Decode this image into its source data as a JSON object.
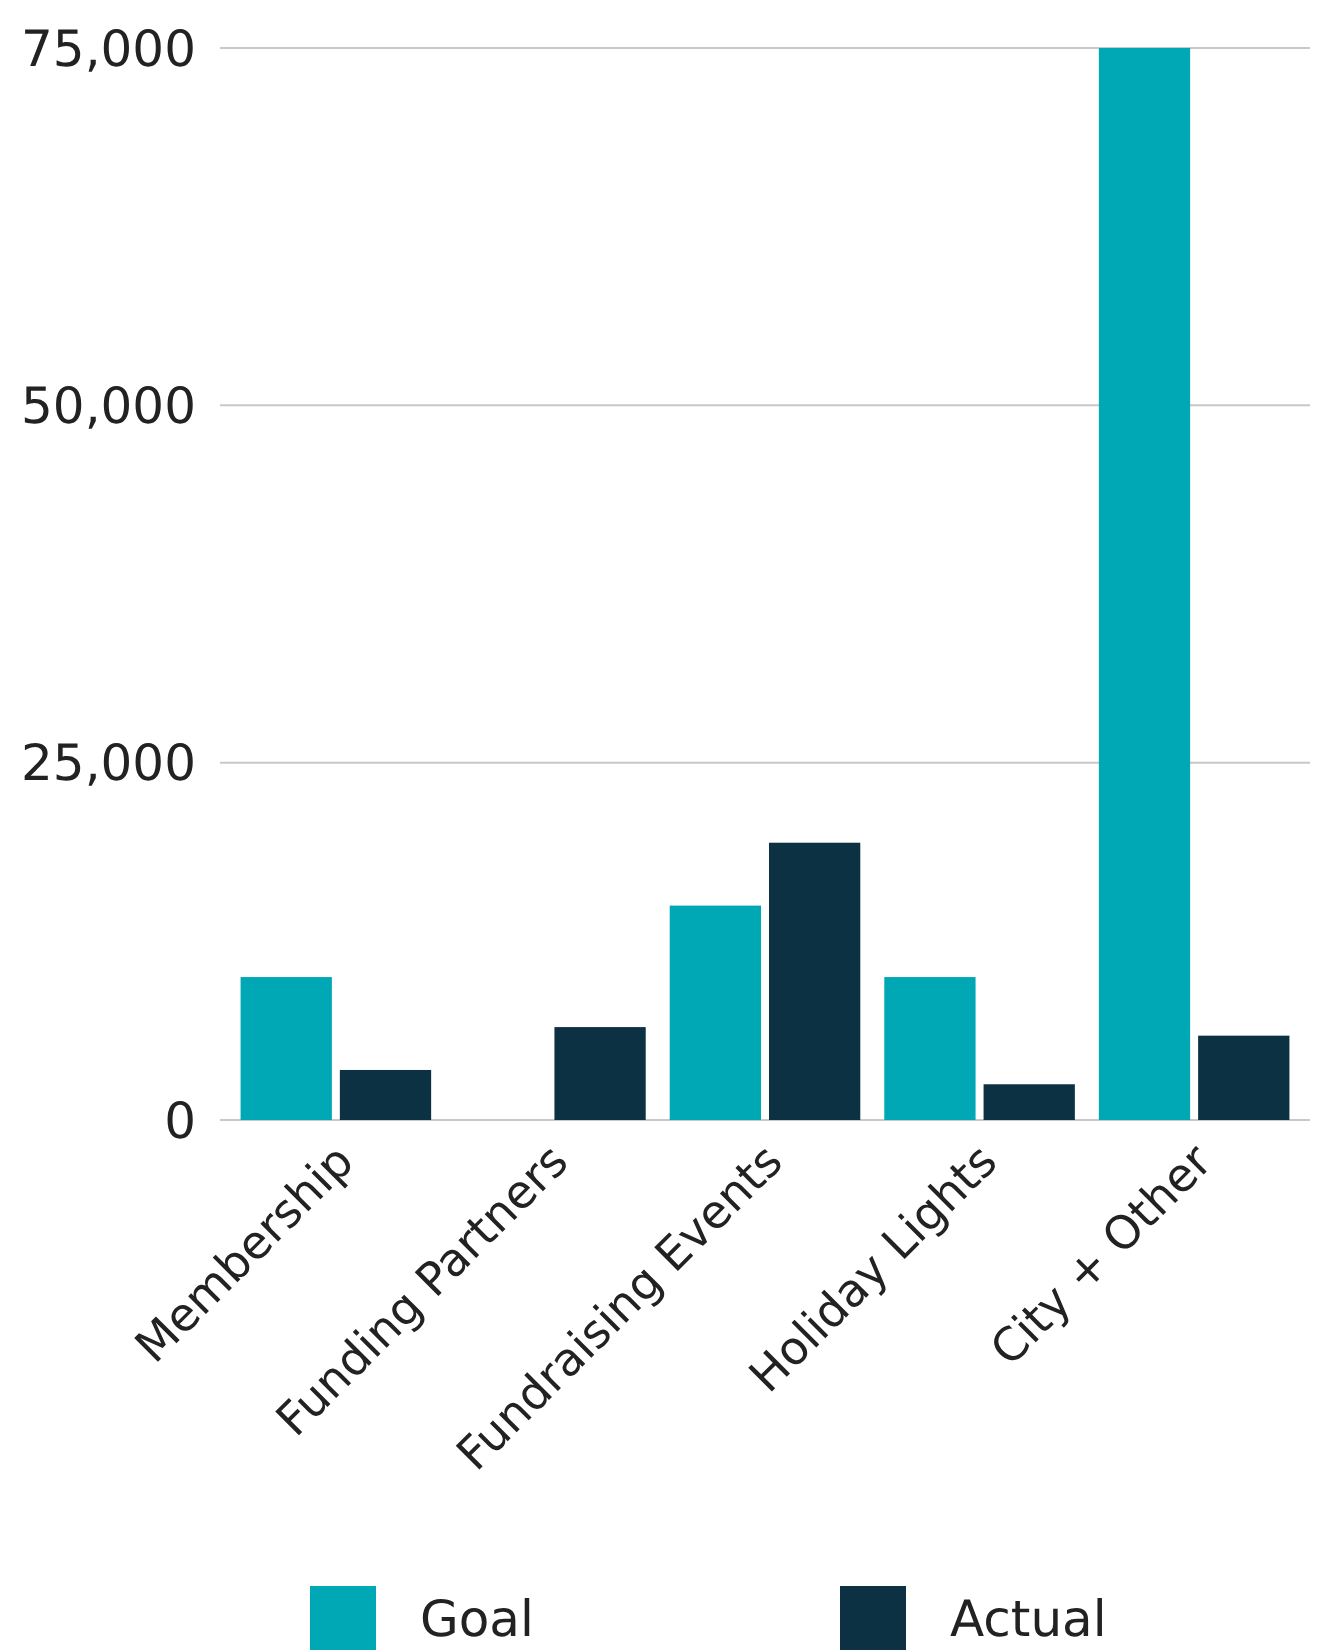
{
  "chart_data": {
    "type": "bar",
    "categories": [
      "Membership",
      "Funding Partners",
      "Fundraising Events",
      "Holiday Lights",
      "City + Other"
    ],
    "series": [
      {
        "name": "Goal",
        "color": "#00a8b5",
        "values": [
          10000,
          0,
          15000,
          10000,
          75000
        ]
      },
      {
        "name": "Actual",
        "color": "#0b3142",
        "values": [
          3500,
          6500,
          19400,
          2500,
          5900
        ]
      }
    ],
    "ylim": [
      0,
      75000
    ],
    "yticks": [
      {
        "value": 0,
        "label": "0"
      },
      {
        "value": 25000,
        "label": "25,000"
      },
      {
        "value": 50000,
        "label": "50,000"
      },
      {
        "value": 75000,
        "label": "75,000"
      }
    ],
    "grid": "y",
    "legend": "bottom"
  }
}
